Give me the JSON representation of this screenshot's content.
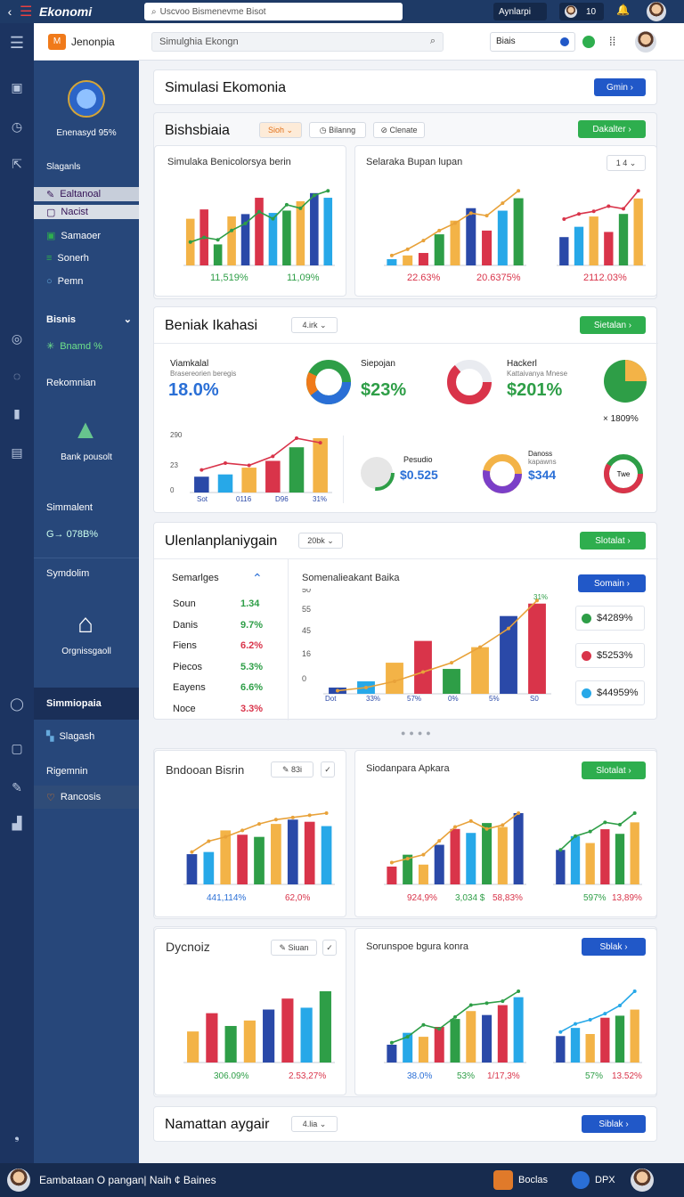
{
  "topbar": {
    "brand": "Ekonomi",
    "search": "Uscvoo Bismenevme Bisot",
    "pill1": "Aynlarpi",
    "pill2": "10",
    "badge": "11"
  },
  "header": {
    "app": "Jenonpia",
    "search": "Simulghia Ekongn",
    "dd": "Biais"
  },
  "nav": {
    "logo_label": "Enenasyd 95%",
    "section1": "Slaganls",
    "items": [
      "Ealtanoal",
      "Nacist",
      "Samaoer",
      "Sonerh",
      "Pemn"
    ],
    "bisnis": "Bisnis",
    "bisnis_sub": "Bnamd %",
    "rekom": "Rekomnian",
    "bank": "Bank pousolt",
    "simmalent": "Simmalent",
    "sim_val": "G→ 078B%",
    "symbolm": "Symdolim",
    "orgn": "Orgnissgaoll",
    "active": "Simmiopaia",
    "slagash": "Slagash",
    "rigemin": "Rigemnin",
    "rancosis": "Rancosis"
  },
  "s1": {
    "title": "Simulasi Ekomonia",
    "btn": "Gmin"
  },
  "s2": {
    "title": "Bishsbiaia",
    "dd1": "Sioh",
    "dd2": "Bilanng",
    "dd3": "Clenate",
    "btn": "Dakalter",
    "card1_title": "Simulaka Benicolorsya berin",
    "card2_title": "Selaraka Bupan lupan",
    "card2_dd": "1 4",
    "c1_v1": "11,519%",
    "c1_v2": "11,09%",
    "c2_v1": "22.63%",
    "c2_v2": "20.6375%",
    "c3_v1": "2112.03%"
  },
  "s3": {
    "title": "Beniak Ikahasi",
    "dd": "4.irk",
    "btn": "Sietalan",
    "k1_label": "Viamkalal",
    "k1_sub": "Brasereorien beregis",
    "k1_val": "18.0%",
    "k2_label": "Siepojan",
    "k2_val": "$23%",
    "k3_label": "Hackerl",
    "k3_sub": "Kattaivanya Mnese",
    "k3_val": "$201%",
    "k4_val": "× 1809%",
    "k5_label": "Pesudio",
    "k5_val": "$0.525",
    "k6_label": "Danoss",
    "k6_sub": "kapawns",
    "k6_val": "$344",
    "k7_val": "Twe",
    "ax1": "290",
    "ax2": "23",
    "ax3": "0",
    "xl1": "Sot",
    "xl2": "0116",
    "xl3": "D96",
    "xl4": "31%"
  },
  "s4": {
    "title": "Ulenlanplaniygain",
    "dd": "20bk",
    "btn": "Slotalat",
    "tbl_head": "Semarlges",
    "rows": [
      [
        "Soun",
        "1.34"
      ],
      [
        "Danis",
        "9.7%"
      ],
      [
        "Fiens",
        "6.2%"
      ],
      [
        "Piecos",
        "5.3%"
      ],
      [
        "Eayens",
        "6.6%"
      ],
      [
        "Noce",
        "3.3%"
      ]
    ],
    "chart_title": "Somenalieakant Baika",
    "btn2": "Somain",
    "y1": "50",
    "y2": "55",
    "y3": "45",
    "y4": "16",
    "y5": "0",
    "xl": [
      "Dot",
      "33%",
      "57%",
      "0%",
      "5%",
      "S0"
    ],
    "peak": "31%",
    "leg": [
      "$4289%",
      "$5253%",
      "$44959%"
    ]
  },
  "s5": {
    "card1": "Bndooan Bisrin",
    "dd1": "83i",
    "card2": "Siodanpara Apkara",
    "btn": "Slotalat",
    "v1": "441,114%",
    "v2": "62,0%",
    "v3": "924,9%",
    "v4": "3,034 $",
    "v5": "58,83%",
    "v6": "597%",
    "v7": "13,89%"
  },
  "s6": {
    "card1": "Dycnoiz",
    "dd1": "Siuan",
    "card2": "Sorunspoe bgura konra",
    "btn": "Sblak",
    "v1": "306.09%",
    "v2": "2.53,27%",
    "v3": "38.0%",
    "v4": "53%",
    "v5": "1/17,3%",
    "v6": "57%",
    "v7": "13.52%"
  },
  "s7": {
    "title": "Namattan aygair",
    "dd": "4.lia",
    "btn": "Siblak"
  },
  "bottom": {
    "text": "Eambataan O pangan| Naih ¢ Baines",
    "bocl": "Boclas",
    "dpx": "DPX"
  },
  "colors": {
    "blue": "#2a49a8",
    "cyan": "#27a8e8",
    "yellow": "#f3b347",
    "red": "#d9344a",
    "green": "#2e9e47",
    "orange": "#e8a23a"
  },
  "chart_data": [
    {
      "type": "bar",
      "title": "Simulaka Benicolorsya berin",
      "series": [
        {
          "values": [
            40,
            48,
            18,
            42,
            44,
            58,
            45,
            47,
            55,
            62,
            58
          ]
        }
      ],
      "line": [
        20,
        24,
        22,
        30,
        36,
        46,
        40,
        52,
        49,
        60,
        64
      ],
      "ylim": [
        0,
        60
      ]
    },
    {
      "type": "bar",
      "title": "Selaraka Bupan lupan",
      "series": [
        {
          "values": [
            5,
            8,
            10,
            25,
            36,
            46,
            28,
            44,
            54
          ]
        }
      ],
      "line": [
        8,
        13,
        20,
        28,
        34,
        42,
        40,
        50,
        60
      ],
      "ylim": [
        0,
        60
      ]
    },
    {
      "type": "bar",
      "series": [
        {
          "values": [
            22,
            30,
            38,
            26,
            40,
            52
          ]
        }
      ],
      "line": [
        36,
        40,
        42,
        46,
        44,
        58
      ]
    },
    {
      "type": "bar",
      "series": [
        {
          "values": [
            14,
            16,
            22,
            28,
            40,
            48
          ]
        }
      ],
      "line": [
        20,
        26,
        24,
        32,
        48,
        44
      ]
    },
    {
      "type": "bar",
      "title": "Somenalieakant Baika",
      "series": [
        {
          "values": [
            4,
            8,
            20,
            34,
            16,
            30,
            50,
            58
          ]
        }
      ],
      "line": [
        2,
        4,
        8,
        14,
        20,
        30,
        42,
        60
      ]
    },
    {
      "type": "bar",
      "title": "Bndooan Bisrin",
      "series": [
        {
          "values": [
            28,
            30,
            50,
            46,
            44,
            56,
            60,
            58,
            54
          ]
        }
      ],
      "line": [
        30,
        40,
        44,
        50,
        56,
        60,
        62,
        64,
        66
      ]
    },
    {
      "type": "bar",
      "title": "Siodanpara Apkara",
      "series": [
        {
          "values": [
            18,
            30,
            20,
            40,
            56,
            52,
            62,
            58,
            72
          ]
        }
      ],
      "line": [
        22,
        26,
        30,
        44,
        58,
        64,
        56,
        60,
        72
      ]
    },
    {
      "type": "bar",
      "series": [
        {
          "values": [
            30,
            42,
            36,
            48,
            44,
            54
          ]
        }
      ],
      "line": [
        30,
        42,
        46,
        54,
        52,
        62
      ]
    },
    {
      "type": "bar",
      "title": "Dycnoiz",
      "series": [
        {
          "values": [
            34,
            54,
            40,
            46,
            58,
            70,
            60,
            78
          ]
        }
      ]
    },
    {
      "type": "bar",
      "title": "Sorunspoe bgura konra",
      "series": [
        {
          "values": [
            18,
            30,
            26,
            36,
            44,
            52,
            48,
            58,
            66
          ]
        }
      ],
      "line": [
        20,
        26,
        38,
        34,
        46,
        58,
        60,
        62,
        72
      ]
    },
    {
      "type": "bar",
      "series": [
        {
          "values": [
            26,
            34,
            28,
            44,
            46,
            52
          ]
        }
      ],
      "line": [
        30,
        38,
        42,
        48,
        56,
        70
      ]
    }
  ]
}
